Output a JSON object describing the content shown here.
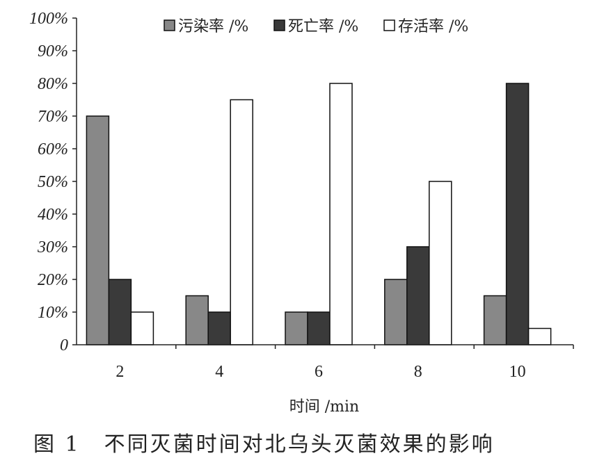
{
  "chart_data": {
    "type": "bar",
    "categories": [
      "2",
      "4",
      "6",
      "8",
      "10"
    ],
    "series": [
      {
        "name": "污染率 /%",
        "values": [
          70,
          15,
          10,
          20,
          15
        ],
        "color": "#888888"
      },
      {
        "name": "死亡率 /%",
        "values": [
          20,
          10,
          10,
          30,
          80
        ],
        "color": "#3a3a3a"
      },
      {
        "name": "存活率 /%",
        "values": [
          10,
          75,
          80,
          50,
          5
        ],
        "color": "#ffffff"
      }
    ],
    "xlabel": "时间 /min",
    "ylabel": "",
    "ylim": [
      0,
      100
    ],
    "yticks": [
      "0",
      "10%",
      "20%",
      "30%",
      "40%",
      "50%",
      "60%",
      "70%",
      "80%",
      "90%",
      "100%"
    ],
    "grid": false,
    "legend_position": "top"
  },
  "caption": {
    "label": "图 1",
    "text": "不同灭菌时间对北乌头灭菌效果的影响"
  }
}
